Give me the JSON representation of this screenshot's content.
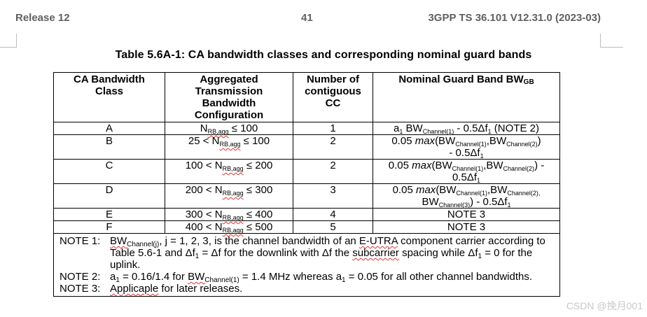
{
  "header": {
    "left": "Release 12",
    "center": "41",
    "right": "3GPP TS 36.101 V12.31.0 (2023-03)"
  },
  "table_title": "Table 5.6A-1: CA bandwidth classes and corresponding nominal guard bands",
  "columns": {
    "class": [
      "CA Bandwidth",
      "Class"
    ],
    "agg": [
      "Aggregated",
      "Transmission",
      "Bandwidth",
      "Configuration"
    ],
    "cc": [
      "Number of",
      "contiguous",
      "CC"
    ],
    "gb": "Nominal Guard Band BW",
    "gb_sub": "GB"
  },
  "rows": [
    {
      "class": "A",
      "agg_pre": "N",
      "agg_sub": "RB,agg",
      "agg_post": " ≤ 100",
      "cc": "1",
      "gb_html": "a<sub>1</sub> BW<sub>Channel(1)</sub> - 0.5Δf<sub>1</sub> (NOTE 2)"
    },
    {
      "class": "B",
      "agg_pre": "25 < N",
      "agg_sub": "RB,agg",
      "agg_post": " ≤ 100",
      "cc": "2",
      "gb_html": "0.05 <i>max</i>(BW<sub>Channel(1)</sub>,BW<sub>Channel(2)</sub>)<br>- 0.5Δf<sub>1</sub>"
    },
    {
      "class": "C",
      "agg_pre": "100 < N",
      "agg_sub": "RB,agg",
      "agg_post": " ≤ 200",
      "cc": "2",
      "gb_html": "0.05 <i>max</i>(BW<sub>Channel(1)</sub>,BW<sub>Channel(2)</sub>) -<br>0.5Δf<sub>1</sub>"
    },
    {
      "class": "D",
      "agg_pre": "200 < N",
      "agg_sub": "RB,agg",
      "agg_post": " ≤ 300",
      "cc": "3",
      "gb_html": "0.05 <i>max</i>(BW<sub>Channel(1)</sub>,BW<sub>Channel(2),</sub><br>BW<sub>Channel(3)</sub>) - 0.5Δf<sub>1</sub>"
    },
    {
      "class": "E",
      "agg_pre": "300 < N",
      "agg_sub": "RB,agg",
      "agg_post": " ≤ 400",
      "cc": "4",
      "gb_html": "NOTE 3"
    },
    {
      "class": "F",
      "agg_pre": "400 < N",
      "agg_sub": "RB,agg",
      "agg_post": " ≤ 500",
      "cc": "5",
      "gb_html": "NOTE 3"
    }
  ],
  "notes": [
    {
      "key": "NOTE 1:",
      "html": "<span class=\"sq\">BW<sub>Channel(j)</sub></span>, j = 1, 2, 3, is the channel bandwidth of an <span class=\"sq\">E-UTRA</span> component carrier according to Table 5.6-1 and Δf<sub>1</sub> = Δf for the downlink with Δf the <span class=\"sq\">subcarrier</span> spacing while Δf<sub>1</sub> = 0 for the uplink."
    },
    {
      "key": "NOTE 2:",
      "html": "a<sub>1</sub> = 0.16/1.4 for <span class=\"sq\">BW<sub>Channel(1)</sub></span> = 1.4 MHz whereas a<sub>1</sub> = 0.05 for all other channel bandwidths."
    },
    {
      "key": "NOTE 3:",
      "html": "<span class=\"sq\">Applicaple</span> for later releases."
    }
  ],
  "watermark": "CSDN @挽月001"
}
